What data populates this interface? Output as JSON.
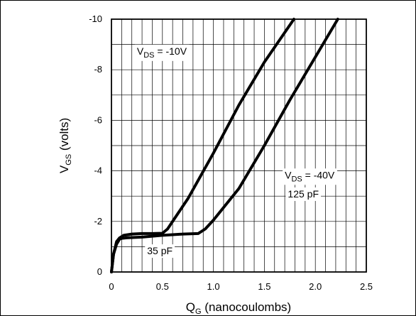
{
  "chart_data": {
    "type": "line",
    "xlabel_main": "Q",
    "xlabel_sub": "G",
    "xlabel_rest": " (nanocoulombs)",
    "ylabel_main": "V",
    "ylabel_sub": "GS",
    "ylabel_rest": " (volts)",
    "xlim": [
      0,
      2.5
    ],
    "ylim": [
      0,
      -10
    ],
    "x_ticks": [
      0,
      0.5,
      1.0,
      1.5,
      2.0,
      2.5
    ],
    "x_tick_labels": [
      "0",
      "0.5",
      "1.0",
      "1.5",
      "2.0",
      "2.5"
    ],
    "y_ticks": [
      0,
      -2,
      -4,
      -6,
      -8,
      -10
    ],
    "y_tick_labels": [
      "0",
      "-2",
      "-4",
      "-6",
      "-8",
      "-10"
    ],
    "grid": true,
    "series": [
      {
        "x": [
          0.0,
          0.02,
          0.05,
          0.08,
          0.12,
          0.2,
          0.3,
          0.4,
          0.5,
          0.55,
          0.65,
          0.75,
          1.0,
          1.25,
          1.5,
          1.79
        ],
        "y": [
          0.0,
          -0.7,
          -1.2,
          -1.35,
          -1.45,
          -1.5,
          -1.52,
          -1.52,
          -1.53,
          -1.7,
          -2.3,
          -2.9,
          -4.7,
          -6.6,
          -8.3,
          -10.0
        ]
      },
      {
        "x": [
          0.0,
          0.02,
          0.05,
          0.08,
          0.1,
          0.15,
          0.3,
          0.5,
          0.7,
          0.85,
          0.92,
          1.0,
          1.25,
          1.5,
          1.75,
          2.0,
          2.22
        ],
        "y": [
          0.0,
          -0.7,
          -1.1,
          -1.3,
          -1.33,
          -1.35,
          -1.38,
          -1.45,
          -1.5,
          -1.52,
          -1.7,
          -2.05,
          -3.3,
          -5.0,
          -6.8,
          -8.5,
          -10.0
        ]
      }
    ],
    "annotations": [
      {
        "main": "V",
        "sub": "DS",
        "rest": " = -10V",
        "x": 0.25,
        "y": -8.6
      },
      {
        "main": "V",
        "sub": "DS",
        "rest": " = -40V",
        "x": 1.7,
        "y": -3.7
      },
      {
        "main": "125 pF",
        "sub": "",
        "rest": "",
        "x": 1.73,
        "y": -2.95
      },
      {
        "main": "35 pF",
        "sub": "",
        "rest": "",
        "x": 0.35,
        "y": -0.7
      }
    ]
  }
}
